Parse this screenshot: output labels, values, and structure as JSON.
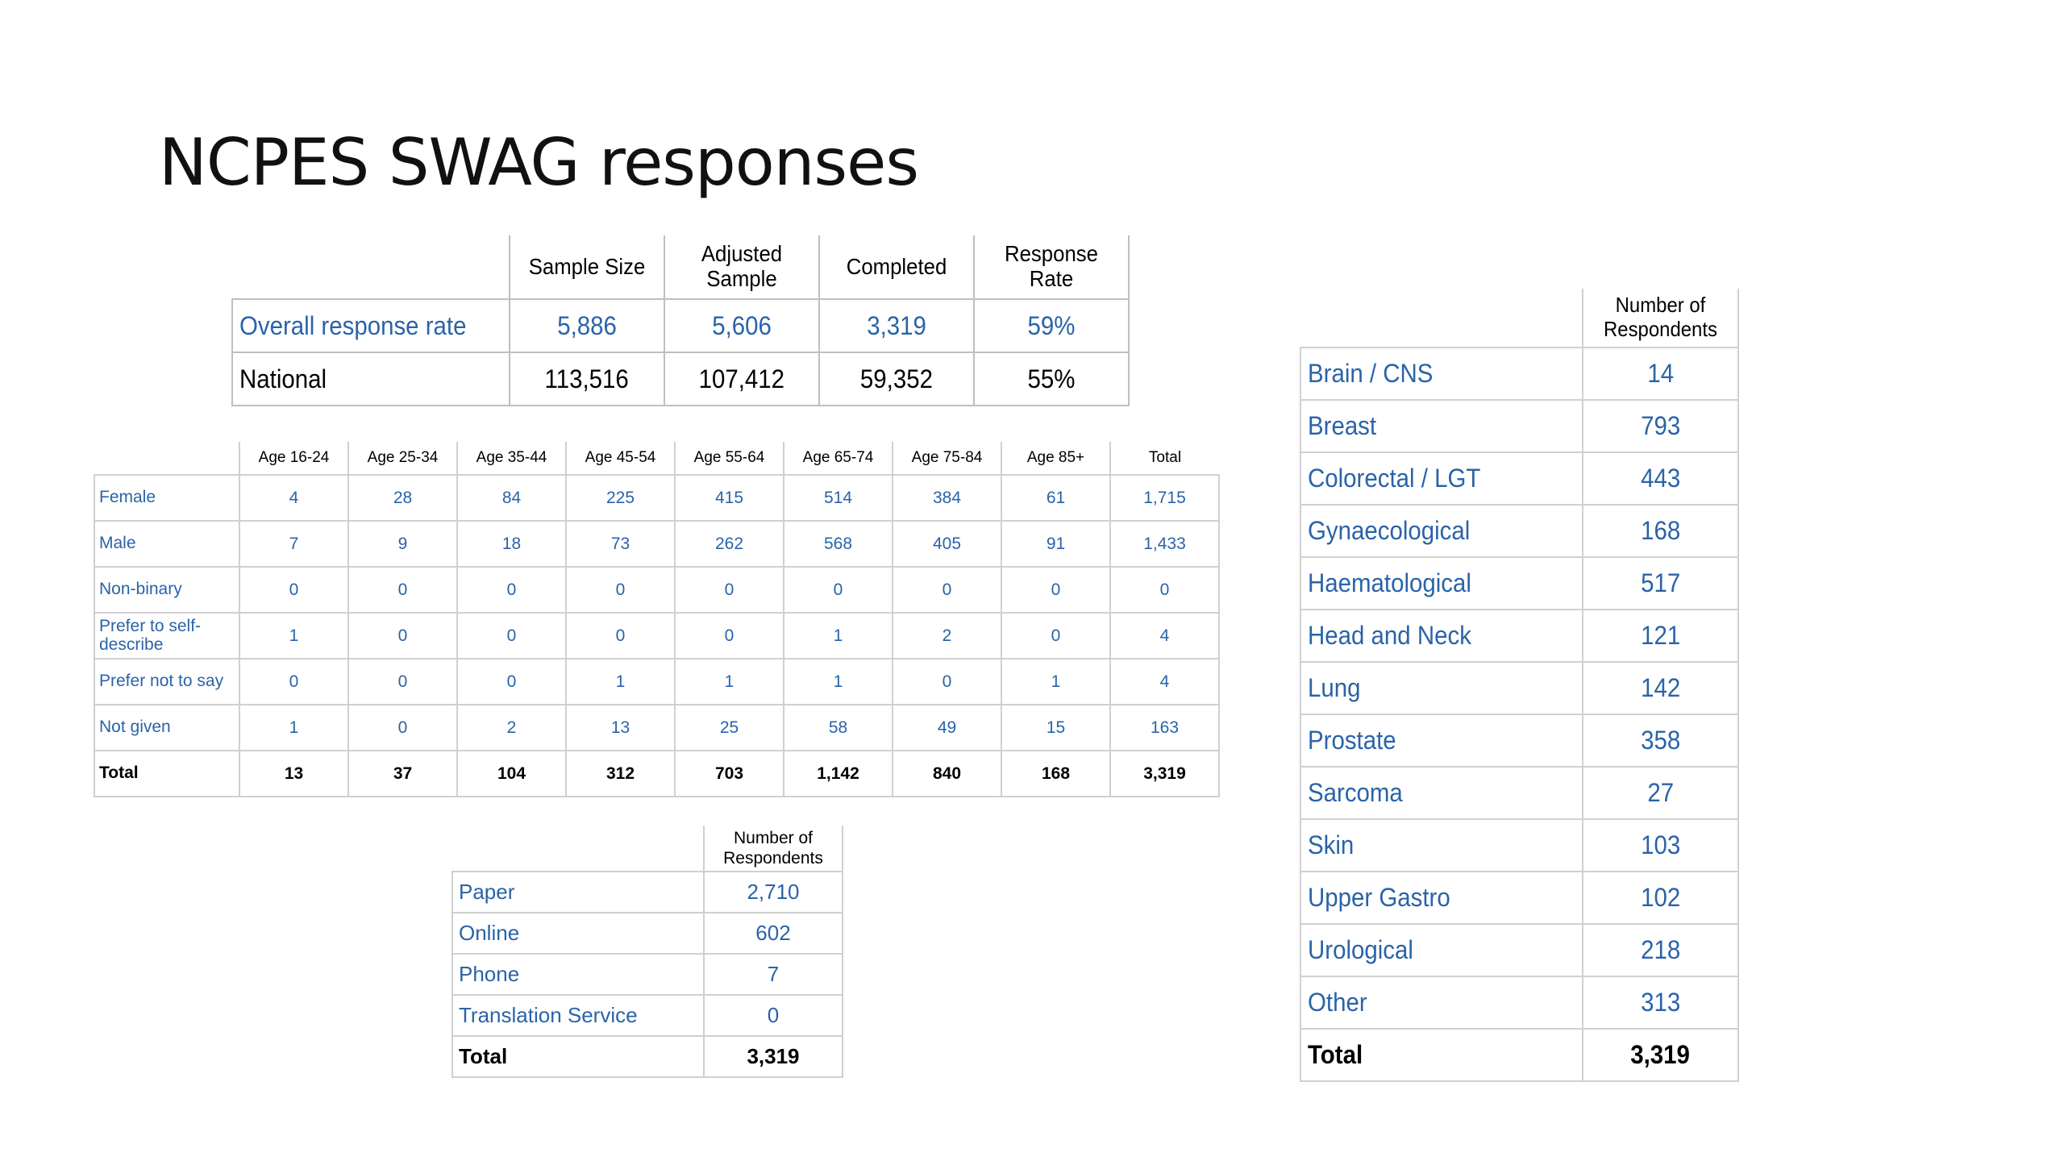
{
  "title": "NCPES SWAG responses",
  "colors": {
    "link_blue": "#2a63a8",
    "border_grey": "#bfbfbf"
  },
  "response_rate_table": {
    "headers": [
      "Sample Size",
      "Adjusted Sample",
      "Completed",
      "Response Rate"
    ],
    "rows": [
      {
        "label": "Overall response rate",
        "values": [
          "5,886",
          "5,606",
          "3,319",
          "59%"
        ]
      },
      {
        "label": "National",
        "values": [
          "113,516",
          "107,412",
          "59,352",
          "55%"
        ]
      }
    ]
  },
  "age_gender_table": {
    "headers": [
      "Age 16-24",
      "Age 25-34",
      "Age 35-44",
      "Age 45-54",
      "Age 55-64",
      "Age 65-74",
      "Age 75-84",
      "Age 85+",
      "Total"
    ],
    "rows": [
      {
        "label": "Female",
        "values": [
          "4",
          "28",
          "84",
          "225",
          "415",
          "514",
          "384",
          "61",
          "1,715"
        ]
      },
      {
        "label": "Male",
        "values": [
          "7",
          "9",
          "18",
          "73",
          "262",
          "568",
          "405",
          "91",
          "1,433"
        ]
      },
      {
        "label": "Non-binary",
        "values": [
          "0",
          "0",
          "0",
          "0",
          "0",
          "0",
          "0",
          "0",
          "0"
        ]
      },
      {
        "label": "Prefer to self-describe",
        "values": [
          "1",
          "0",
          "0",
          "0",
          "0",
          "1",
          "2",
          "0",
          "4"
        ]
      },
      {
        "label": "Prefer not to say",
        "values": [
          "0",
          "0",
          "0",
          "1",
          "1",
          "1",
          "0",
          "1",
          "4"
        ]
      },
      {
        "label": "Not given",
        "values": [
          "1",
          "0",
          "2",
          "13",
          "25",
          "58",
          "49",
          "15",
          "163"
        ]
      },
      {
        "label": "Total",
        "values": [
          "13",
          "37",
          "104",
          "312",
          "703",
          "1,142",
          "840",
          "168",
          "3,319"
        ]
      }
    ]
  },
  "mode_table": {
    "header": "Number of Respondents",
    "rows": [
      {
        "label": "Paper",
        "value": "2,710"
      },
      {
        "label": "Online",
        "value": "602"
      },
      {
        "label": "Phone",
        "value": "7"
      },
      {
        "label": "Translation Service",
        "value": "0"
      },
      {
        "label": "Total",
        "value": "3,319"
      }
    ]
  },
  "tumour_table": {
    "header": "Number of Respondents",
    "rows": [
      {
        "label": "Brain / CNS",
        "value": "14"
      },
      {
        "label": "Breast",
        "value": "793"
      },
      {
        "label": "Colorectal / LGT",
        "value": "443"
      },
      {
        "label": "Gynaecological",
        "value": "168"
      },
      {
        "label": "Haematological",
        "value": "517"
      },
      {
        "label": "Head and Neck",
        "value": "121"
      },
      {
        "label": "Lung",
        "value": "142"
      },
      {
        "label": "Prostate",
        "value": "358"
      },
      {
        "label": "Sarcoma",
        "value": "27"
      },
      {
        "label": "Skin",
        "value": "103"
      },
      {
        "label": "Upper Gastro",
        "value": "102"
      },
      {
        "label": "Urological",
        "value": "218"
      },
      {
        "label": "Other",
        "value": "313"
      },
      {
        "label": "Total",
        "value": "3,319"
      }
    ]
  }
}
